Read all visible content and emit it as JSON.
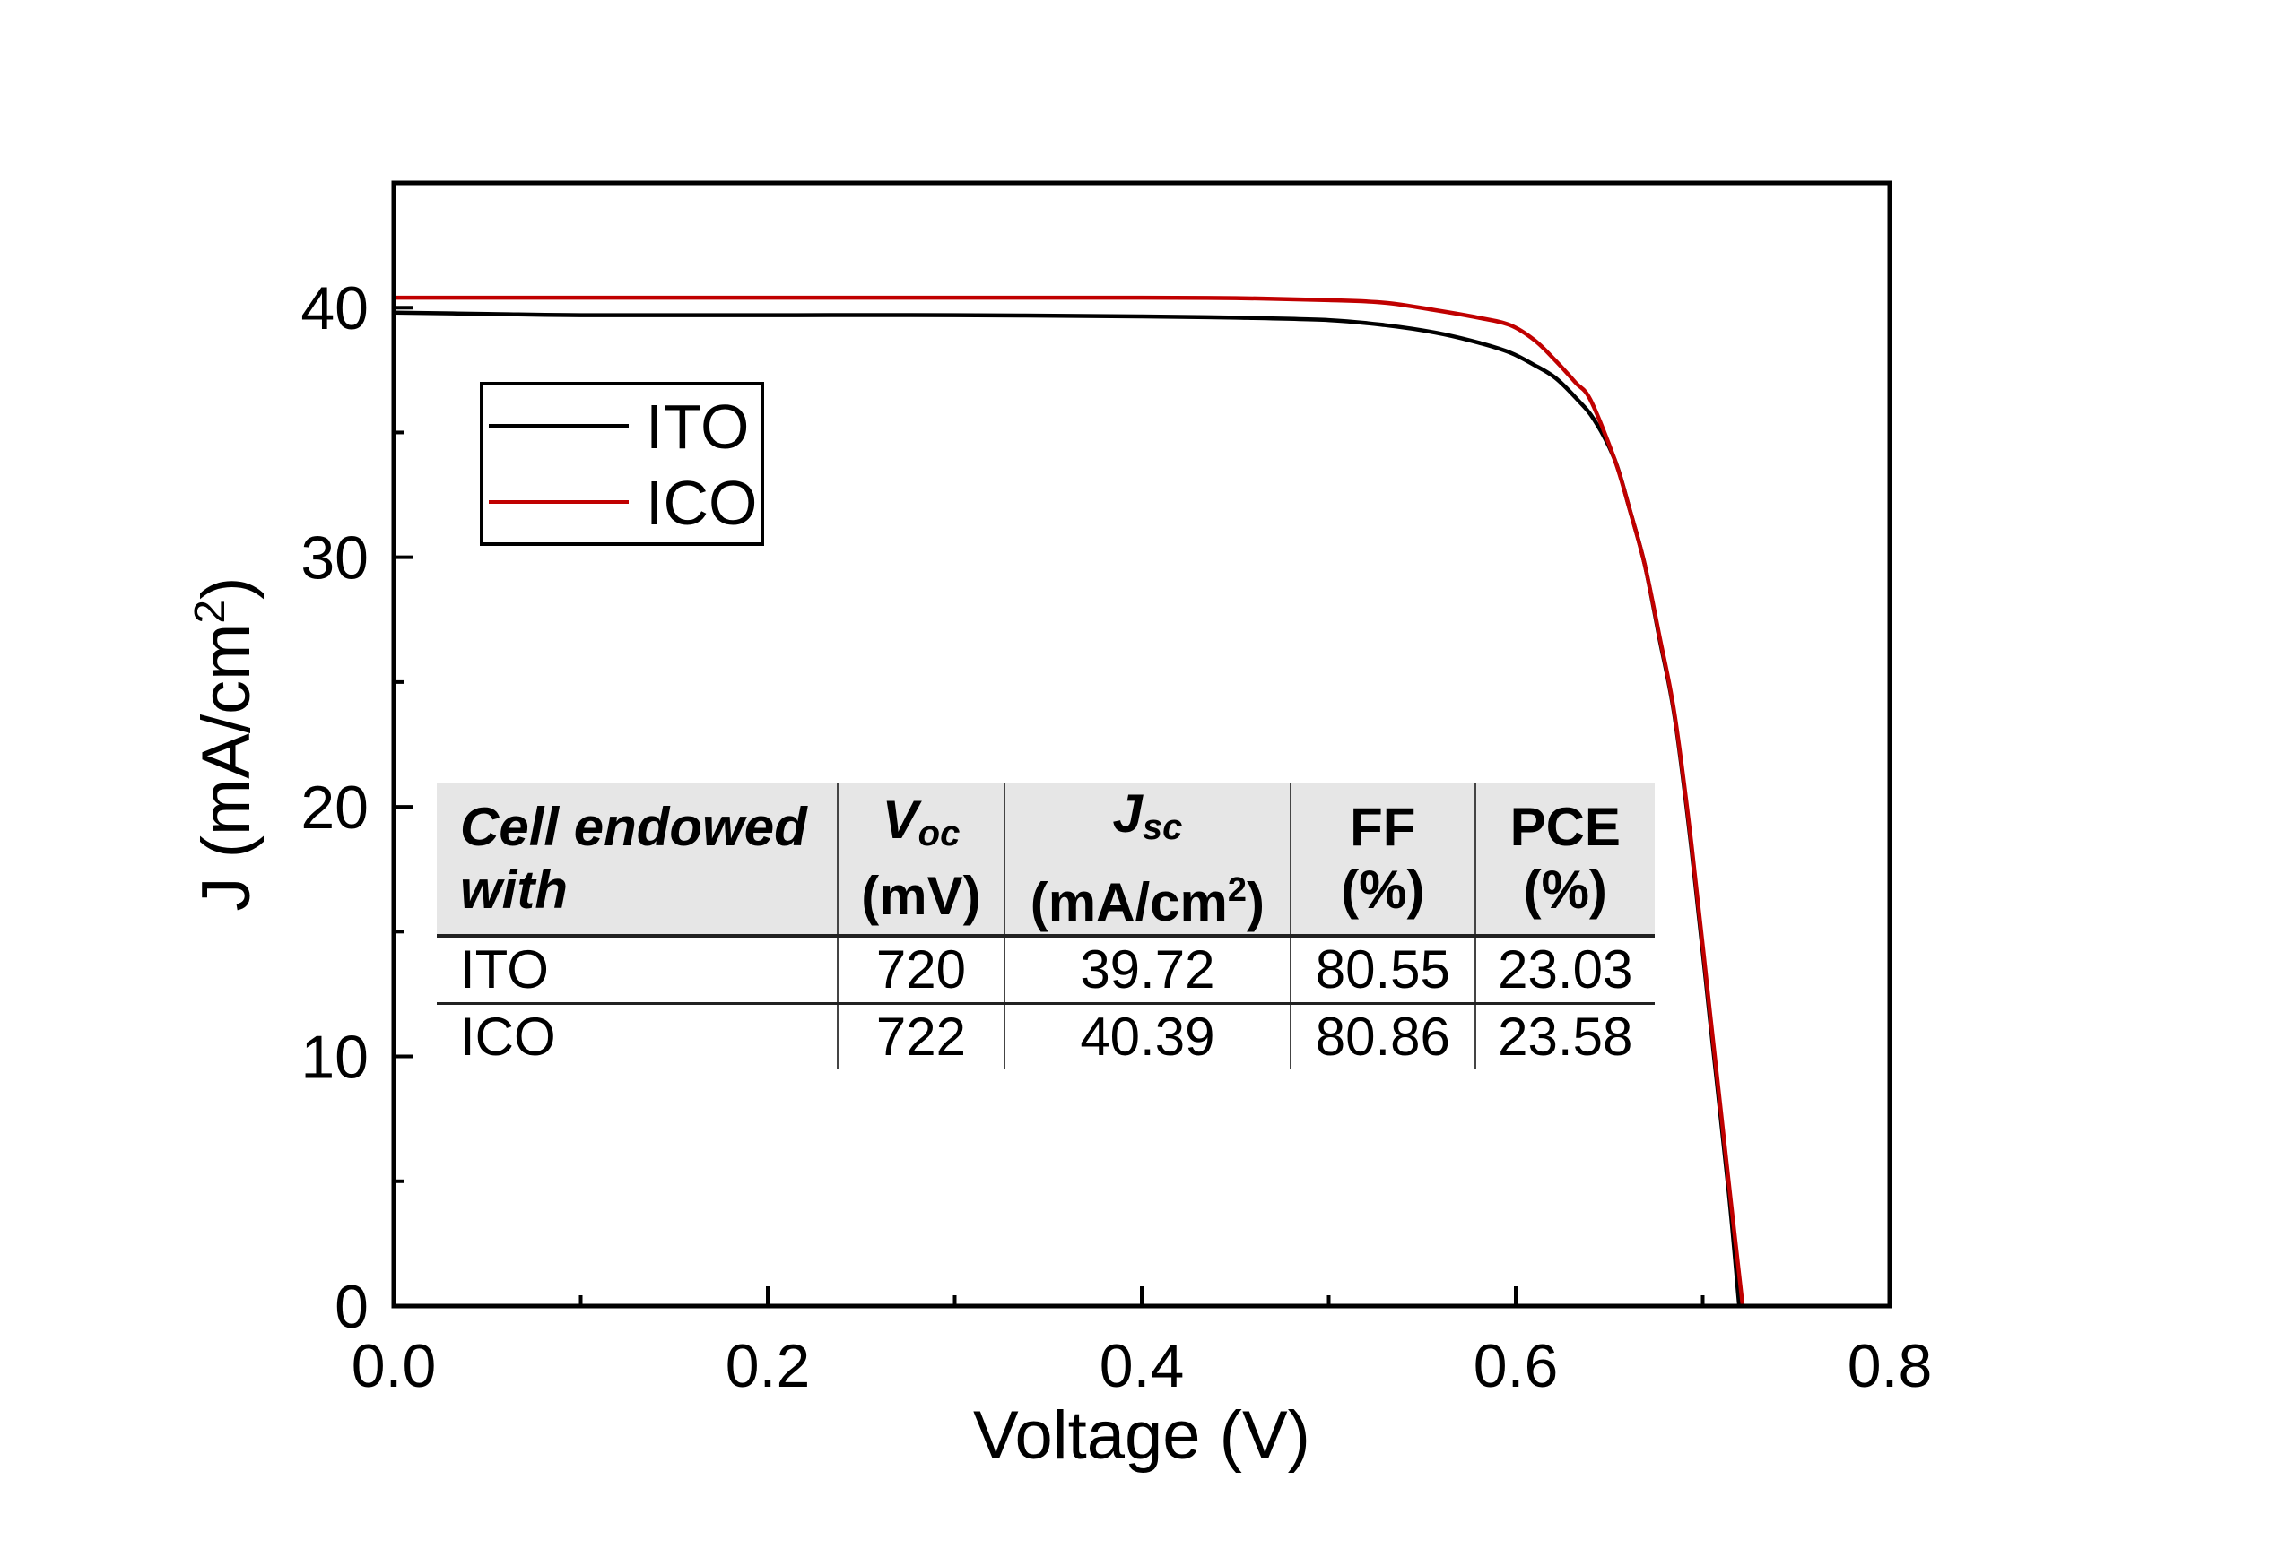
{
  "chart_data": {
    "type": "line",
    "title": "",
    "xlabel": "Voltage (V)",
    "ylabel_main": "J (mA/cm",
    "ylabel_sup": "2",
    "ylabel_close": ")",
    "ylabel": "J (mA/cm²)",
    "xlim": [
      0.0,
      0.8
    ],
    "ylim": [
      0,
      45
    ],
    "x_ticks": [
      0.0,
      0.2,
      0.4,
      0.6,
      0.8
    ],
    "x_tick_labels": [
      "0.0",
      "0.2",
      "0.4",
      "0.6",
      "0.8"
    ],
    "x_minor_ticks": [
      0.1,
      0.3,
      0.5,
      0.7
    ],
    "y_ticks": [
      0,
      10,
      20,
      30,
      40
    ],
    "y_tick_labels": [
      "0",
      "10",
      "20",
      "30",
      "40"
    ],
    "y_minor_ticks": [
      5,
      15,
      25,
      35
    ],
    "grid": false,
    "legend_position": "upper-left",
    "series": [
      {
        "name": "ITO",
        "color": "#000000",
        "x": [
          0.0,
          0.05,
          0.1,
          0.2,
          0.3,
          0.4,
          0.45,
          0.5,
          0.53,
          0.557,
          0.58,
          0.597,
          0.61,
          0.621,
          0.632,
          0.642,
          0.653,
          0.661,
          0.669,
          0.677,
          0.685,
          0.694,
          0.704,
          0.714,
          0.7195
        ],
        "y": [
          39.8,
          39.75,
          39.7,
          39.7,
          39.7,
          39.65,
          39.6,
          39.5,
          39.3,
          39.0,
          38.6,
          38.2,
          37.7,
          37.2,
          36.4,
          35.5,
          33.9,
          31.9,
          29.7,
          26.7,
          23.6,
          18.3,
          11.4,
          4.5,
          0.0
        ]
      },
      {
        "name": "ICO",
        "color": "#c00000",
        "x": [
          0.0,
          0.05,
          0.1,
          0.2,
          0.3,
          0.4,
          0.45,
          0.5,
          0.53,
          0.557,
          0.58,
          0.597,
          0.61,
          0.621,
          0.632,
          0.64,
          0.653,
          0.661,
          0.669,
          0.677,
          0.685,
          0.694,
          0.704,
          0.714,
          0.7214
        ],
        "y": [
          40.4,
          40.4,
          40.4,
          40.4,
          40.4,
          40.4,
          40.38,
          40.3,
          40.2,
          39.9,
          39.6,
          39.3,
          38.7,
          37.9,
          37.0,
          36.3,
          33.9,
          31.9,
          29.7,
          26.8,
          23.7,
          18.5,
          11.7,
          4.9,
          0.0
        ]
      }
    ],
    "legend": [
      "ITO",
      "ICO"
    ],
    "table": {
      "headers": [
        {
          "main": "Cell endowed",
          "line2": "with"
        },
        {
          "sym": "V",
          "sub": "oc",
          "line2": "(mV)"
        },
        {
          "sym": "J",
          "sub": "sc",
          "line2_pre": "(mA/cm",
          "line2_sup": "2",
          "line2_post": ")"
        },
        {
          "main": "FF",
          "line2": "(%)"
        },
        {
          "main": "PCE",
          "line2": "(%)"
        }
      ],
      "rows": [
        {
          "cell": "ITO",
          "voc": "720",
          "jsc": "39.72",
          "ff": "80.55",
          "pce": "23.03"
        },
        {
          "cell": "ICO",
          "voc": "722",
          "jsc": "40.39",
          "ff": "80.86",
          "pce": "23.58"
        }
      ]
    }
  }
}
